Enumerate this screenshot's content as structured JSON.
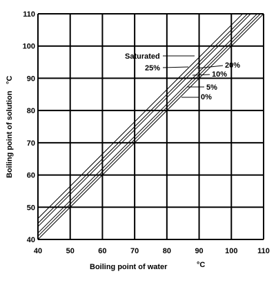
{
  "chart_data": {
    "type": "line",
    "xlabel": "Boiling point of water",
    "xunit": "°C",
    "ylabel": "Boiling point of solution",
    "yunit": "°C",
    "xlim": [
      40,
      110
    ],
    "ylim": [
      40,
      110
    ],
    "x_ticks": [
      40,
      50,
      60,
      70,
      80,
      90,
      100,
      110
    ],
    "y_ticks": [
      40,
      50,
      60,
      70,
      80,
      90,
      100,
      110
    ],
    "grid": true,
    "series": [
      {
        "name": "0%",
        "x": [
          40,
          110
        ],
        "y": [
          40,
          110
        ]
      },
      {
        "name": "5%",
        "x": [
          40,
          110
        ],
        "y": [
          41,
          111
        ]
      },
      {
        "name": "10%",
        "x": [
          40,
          110
        ],
        "y": [
          42,
          112
        ]
      },
      {
        "name": "20%",
        "x": [
          40,
          110
        ],
        "y": [
          44,
          114
        ]
      },
      {
        "name": "25%",
        "x": [
          40,
          110
        ],
        "y": [
          45,
          115
        ]
      },
      {
        "name": "Saturated",
        "x": [
          40,
          110
        ],
        "y": [
          46.5,
          116.5
        ]
      }
    ]
  }
}
